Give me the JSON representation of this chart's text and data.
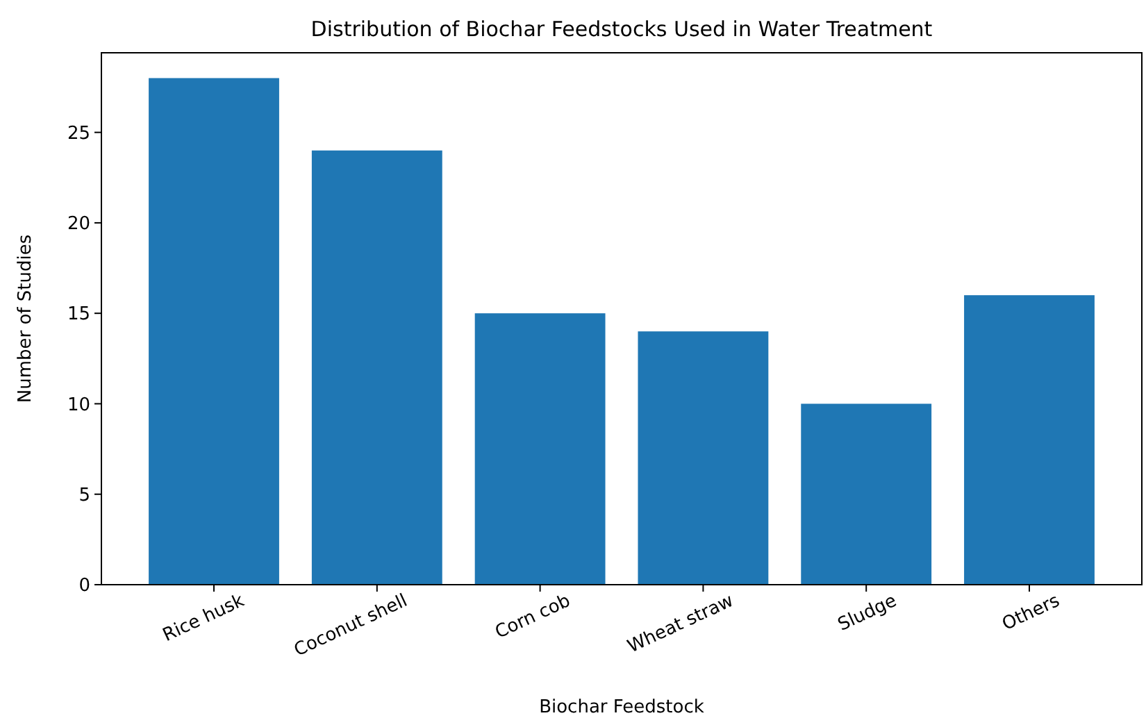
{
  "chart_data": {
    "type": "bar",
    "title": "Distribution of Biochar Feedstocks Used in Water Treatment",
    "xlabel": "Biochar Feedstock",
    "ylabel": "Number of Studies",
    "categories": [
      "Rice husk",
      "Coconut shell",
      "Corn cob",
      "Wheat straw",
      "Sludge",
      "Others"
    ],
    "values": [
      28,
      24,
      15,
      14,
      10,
      16
    ],
    "color": "#1f77b4",
    "ylim": [
      0,
      29.4
    ],
    "yticks": [
      0,
      5,
      10,
      15,
      20,
      25
    ],
    "grid": false
  }
}
